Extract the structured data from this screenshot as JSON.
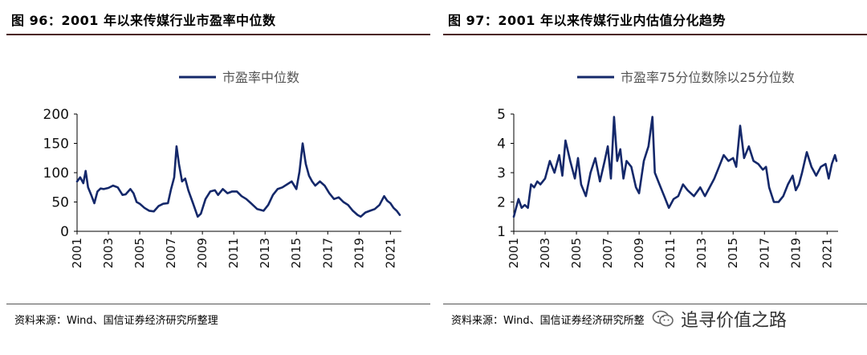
{
  "figures": [
    {
      "title": "图 96：2001 年以来传媒行业市盈率中位数",
      "source": "资料来源：Wind、国信证券经济研究所整理"
    },
    {
      "title": "图 97：2001 年以来传媒行业内估值分化趋势",
      "source": "资料来源：Wind、国信证券经济研究所整"
    }
  ],
  "watermark": {
    "text": "追寻价值之路",
    "icon": "wechat-icon"
  },
  "colors": {
    "series": "#14286a",
    "title_rule": "#4a1f1f"
  },
  "chart_data": [
    {
      "type": "line",
      "title": "",
      "legend": [
        "市盈率中位数"
      ],
      "legend_position": "top-center",
      "grid": false,
      "xlim": [
        2001.0,
        2021.7
      ],
      "ylim": [
        0,
        200
      ],
      "yticks": [
        "0",
        "50",
        "100",
        "150",
        "200"
      ],
      "xticks": [
        "2001",
        "2003",
        "2005",
        "2007",
        "2009",
        "2011",
        "2013",
        "2015",
        "2017",
        "2019",
        "2021"
      ],
      "series": [
        {
          "name": "市盈率中位数",
          "x": [
            2001.0,
            2001.2,
            2001.4,
            2001.55,
            2001.7,
            2001.9,
            2002.1,
            2002.3,
            2002.5,
            2002.7,
            2003.0,
            2003.3,
            2003.6,
            2003.9,
            2004.1,
            2004.4,
            2004.6,
            2004.8,
            2005.0,
            2005.3,
            2005.6,
            2005.9,
            2006.2,
            2006.5,
            2006.8,
            2007.0,
            2007.2,
            2007.35,
            2007.5,
            2007.7,
            2007.9,
            2008.1,
            2008.4,
            2008.7,
            2008.9,
            2009.2,
            2009.5,
            2009.8,
            2010.0,
            2010.3,
            2010.6,
            2010.9,
            2011.2,
            2011.5,
            2011.8,
            2012.1,
            2012.5,
            2012.9,
            2013.2,
            2013.5,
            2013.8,
            2014.1,
            2014.4,
            2014.7,
            2015.0,
            2015.2,
            2015.4,
            2015.6,
            2015.8,
            2016.0,
            2016.2,
            2016.5,
            2016.8,
            2017.1,
            2017.4,
            2017.7,
            2018.0,
            2018.3,
            2018.6,
            2018.9,
            2019.1,
            2019.4,
            2019.7,
            2020.0,
            2020.3,
            2020.6,
            2020.8,
            2021.0,
            2021.2,
            2021.4,
            2021.6
          ],
          "values": [
            85,
            92,
            82,
            103,
            75,
            62,
            48,
            68,
            73,
            72,
            74,
            78,
            75,
            62,
            63,
            72,
            65,
            50,
            47,
            40,
            35,
            34,
            43,
            47,
            48,
            72,
            92,
            145,
            115,
            85,
            90,
            70,
            48,
            25,
            30,
            55,
            68,
            70,
            62,
            72,
            65,
            68,
            68,
            60,
            55,
            48,
            38,
            35,
            45,
            62,
            72,
            75,
            80,
            85,
            72,
            102,
            150,
            115,
            95,
            85,
            78,
            85,
            78,
            65,
            55,
            58,
            50,
            45,
            35,
            28,
            25,
            32,
            35,
            38,
            45,
            60,
            52,
            48,
            40,
            35,
            28
          ]
        }
      ]
    },
    {
      "type": "line",
      "title": "",
      "legend": [
        "市盈率75分位数除以25分位数"
      ],
      "legend_position": "top-center",
      "grid": false,
      "xlim": [
        2001.0,
        2021.7
      ],
      "ylim": [
        1,
        5
      ],
      "yticks": [
        "1",
        "2",
        "3",
        "4",
        "5"
      ],
      "xticks": [
        "2001",
        "2003",
        "2005",
        "2007",
        "2009",
        "2011",
        "2013",
        "2015",
        "2017",
        "2019",
        "2021"
      ],
      "series": [
        {
          "name": "市盈率75分位数除以25分位数",
          "x": [
            2001.0,
            2001.15,
            2001.3,
            2001.5,
            2001.7,
            2001.9,
            2002.1,
            2002.3,
            2002.5,
            2002.7,
            2003.0,
            2003.3,
            2003.6,
            2003.9,
            2004.1,
            2004.3,
            2004.6,
            2004.9,
            2005.1,
            2005.3,
            2005.6,
            2005.9,
            2006.2,
            2006.5,
            2006.8,
            2007.0,
            2007.2,
            2007.4,
            2007.6,
            2007.8,
            2008.0,
            2008.2,
            2008.5,
            2008.8,
            2009.0,
            2009.3,
            2009.6,
            2009.85,
            2010.0,
            2010.3,
            2010.6,
            2010.9,
            2011.2,
            2011.5,
            2011.8,
            2012.1,
            2012.5,
            2012.9,
            2013.2,
            2013.5,
            2013.8,
            2014.1,
            2014.4,
            2014.7,
            2015.0,
            2015.2,
            2015.45,
            2015.7,
            2016.0,
            2016.3,
            2016.6,
            2016.9,
            2017.1,
            2017.3,
            2017.6,
            2017.9,
            2018.2,
            2018.5,
            2018.8,
            2019.0,
            2019.2,
            2019.4,
            2019.7,
            2020.0,
            2020.3,
            2020.6,
            2020.9,
            2021.1,
            2021.3,
            2021.5,
            2021.6
          ],
          "values": [
            1.5,
            1.8,
            2.1,
            1.8,
            1.9,
            1.8,
            2.6,
            2.5,
            2.7,
            2.6,
            2.8,
            3.4,
            3.0,
            3.6,
            2.9,
            4.1,
            3.4,
            2.8,
            3.5,
            2.6,
            2.2,
            3.0,
            3.5,
            2.7,
            3.4,
            3.9,
            2.8,
            4.9,
            3.4,
            3.8,
            2.8,
            3.4,
            3.2,
            2.5,
            2.3,
            3.4,
            3.9,
            4.9,
            3.0,
            2.6,
            2.2,
            1.8,
            2.1,
            2.2,
            2.6,
            2.4,
            2.2,
            2.5,
            2.2,
            2.5,
            2.8,
            3.2,
            3.6,
            3.4,
            3.5,
            3.2,
            4.6,
            3.5,
            3.9,
            3.4,
            3.3,
            3.1,
            3.2,
            2.5,
            2.0,
            2.0,
            2.2,
            2.6,
            2.9,
            2.4,
            2.6,
            3.0,
            3.7,
            3.2,
            2.9,
            3.2,
            3.3,
            2.8,
            3.3,
            3.6,
            3.4
          ]
        }
      ]
    }
  ]
}
